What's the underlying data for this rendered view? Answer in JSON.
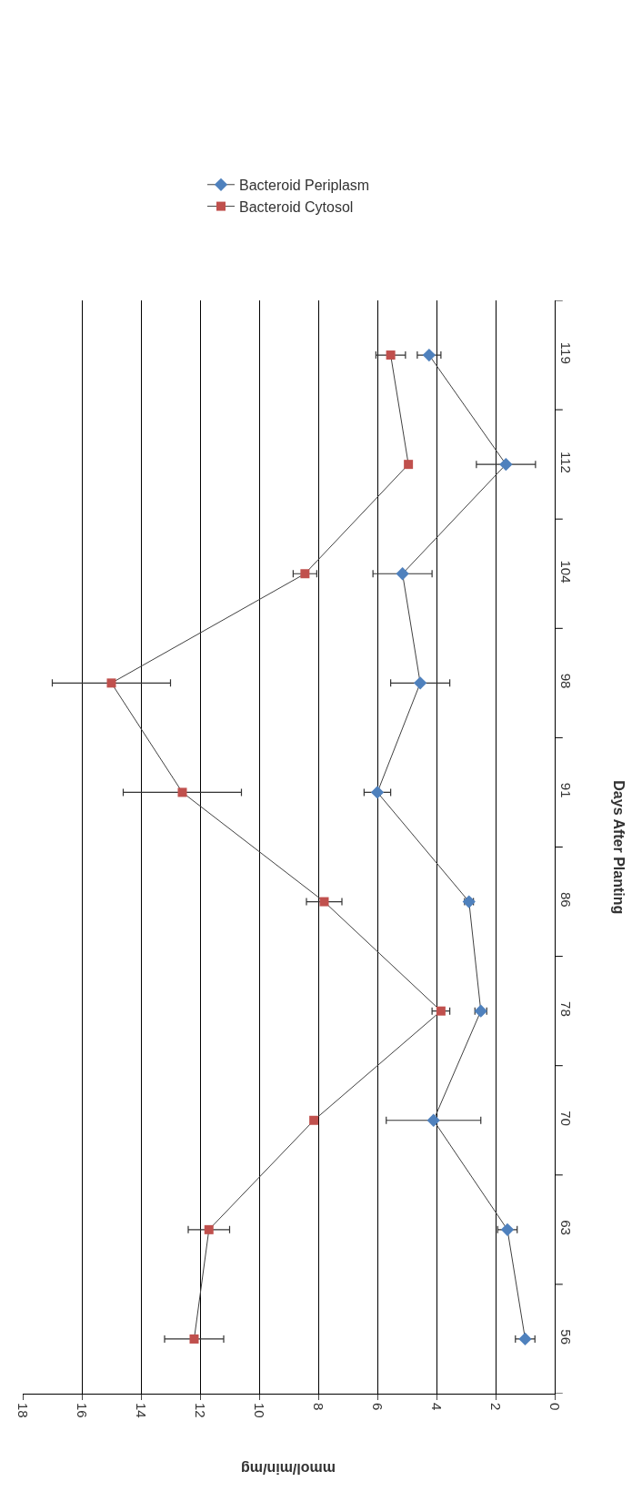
{
  "chart_data": {
    "type": "line",
    "orientation": "horizontal",
    "xlabel": "mmol/min/mg",
    "ylabel": "Days After Planting",
    "categories": [
      "119",
      "112",
      "104",
      "98",
      "91",
      "86",
      "78",
      "70",
      "63",
      "56"
    ],
    "xlim": [
      18,
      0
    ],
    "xticks": [
      0,
      2,
      4,
      6,
      8,
      10,
      12,
      14,
      16,
      18
    ],
    "grid": "x",
    "legend": "top",
    "series": [
      {
        "name": "Bacteroid Periplasm",
        "color": "#4f81bd",
        "marker": "diamond",
        "values": [
          4.25,
          1.65,
          5.15,
          4.55,
          6.0,
          2.9,
          2.5,
          4.1,
          1.6,
          1.0
        ],
        "errors": [
          0.4,
          1.0,
          1.0,
          1.0,
          0.45,
          0.15,
          0.2,
          1.6,
          0.33,
          0.33
        ]
      },
      {
        "name": "Bacteroid Cytosol",
        "color": "#c0504d",
        "marker": "square",
        "values": [
          5.55,
          4.95,
          8.45,
          15.0,
          12.6,
          7.8,
          3.85,
          8.15,
          11.7,
          12.2
        ],
        "errors": [
          0.5,
          null,
          0.4,
          2.0,
          2.0,
          0.6,
          0.3,
          null,
          0.7,
          1.0
        ]
      }
    ]
  }
}
